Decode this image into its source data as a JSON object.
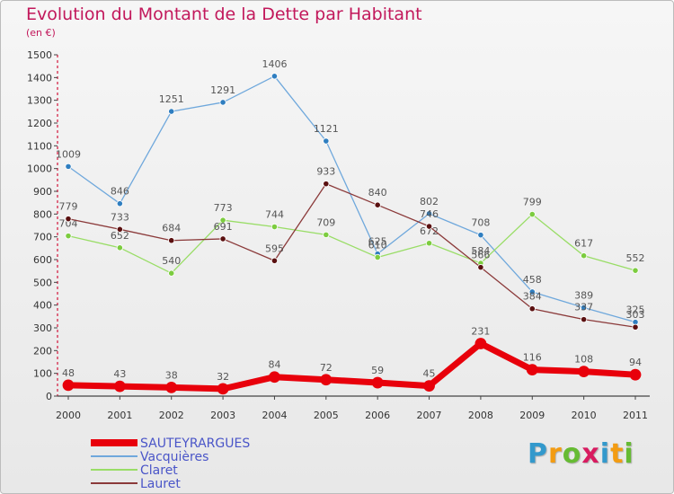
{
  "chart_data": {
    "type": "line",
    "title": "Evolution du Montant de la Dette par Habitant",
    "subtitle": "(en €)",
    "xlabel": "",
    "ylabel": "",
    "categories": [
      "2000",
      "2001",
      "2002",
      "2003",
      "2004",
      "2005",
      "2006",
      "2007",
      "2008",
      "2009",
      "2010",
      "2011"
    ],
    "ylim": [
      0,
      1500
    ],
    "yticks": [
      0,
      100,
      200,
      300,
      400,
      500,
      600,
      700,
      800,
      900,
      1000,
      1100,
      1200,
      1300,
      1400,
      1500
    ],
    "grid": false,
    "legend_position": "bottom-left",
    "series": [
      {
        "name": "SAUTEYRARGUES",
        "color": "#e8000b",
        "marker": "#e8000b",
        "highlight": true,
        "values": [
          48,
          43,
          38,
          32,
          84,
          72,
          59,
          45,
          231,
          116,
          108,
          94
        ]
      },
      {
        "name": "Vacquières",
        "color": "#6fa8dc",
        "marker": "#2f7ec0",
        "values": [
          1009,
          846,
          1251,
          1291,
          1406,
          1121,
          625,
          802,
          708,
          458,
          389,
          325
        ]
      },
      {
        "name": "Claret",
        "color": "#99dd66",
        "marker": "#7ccc3f",
        "values": [
          704,
          652,
          540,
          773,
          744,
          709,
          610,
          672,
          584,
          799,
          617,
          552
        ]
      },
      {
        "name": "Lauret",
        "color": "#8b3a3a",
        "marker": "#5a1010",
        "values": [
          779,
          733,
          684,
          691,
          595,
          933,
          840,
          746,
          566,
          384,
          337,
          303
        ]
      }
    ]
  },
  "logo": {
    "letters": [
      "P",
      "r",
      "o",
      "x",
      "i",
      "t",
      "i"
    ],
    "colors": [
      "#3399cc",
      "#f39c12",
      "#66bb33",
      "#d81b60",
      "#3399cc",
      "#f39c12",
      "#66bb33"
    ]
  }
}
